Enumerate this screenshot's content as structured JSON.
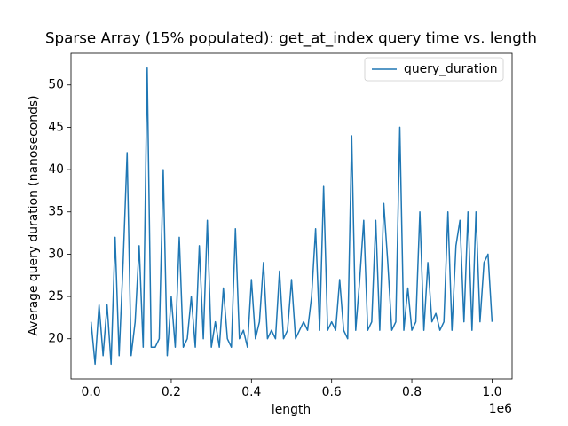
{
  "chart_data": {
    "type": "line",
    "title": "Sparse Array (15% populated): get_at_index query time vs. length",
    "x_label": "length",
    "x_offset_label": "1e6",
    "y_label": "Average query duration (nanoseconds)",
    "x": [
      0,
      10000,
      20000,
      30000,
      40000,
      50000,
      60000,
      70000,
      80000,
      90000,
      100000,
      110000,
      120000,
      130000,
      140000,
      150000,
      160000,
      170000,
      180000,
      190000,
      200000,
      210000,
      220000,
      230000,
      240000,
      250000,
      260000,
      270000,
      280000,
      290000,
      300000,
      310000,
      320000,
      330000,
      340000,
      350000,
      360000,
      370000,
      380000,
      390000,
      400000,
      410000,
      420000,
      430000,
      440000,
      450000,
      460000,
      470000,
      480000,
      490000,
      500000,
      510000,
      520000,
      530000,
      540000,
      550000,
      560000,
      570000,
      580000,
      590000,
      600000,
      610000,
      620000,
      630000,
      640000,
      650000,
      660000,
      670000,
      680000,
      690000,
      700000,
      710000,
      720000,
      730000,
      740000,
      750000,
      760000,
      770000,
      780000,
      790000,
      800000,
      810000,
      820000,
      830000,
      840000,
      850000,
      860000,
      870000,
      880000,
      890000,
      900000,
      910000,
      920000,
      930000,
      940000,
      950000,
      960000,
      970000,
      980000,
      990000,
      1000000
    ],
    "series": [
      {
        "name": "query_duration",
        "color": "#1f77b4",
        "values": [
          22,
          17,
          24,
          18,
          24,
          17,
          32,
          18,
          29,
          42,
          18,
          22,
          31,
          19,
          52,
          19,
          19,
          20,
          40,
          18,
          25,
          19,
          32,
          19,
          20,
          25,
          19,
          31,
          20,
          34,
          19,
          22,
          19,
          26,
          20,
          19,
          33,
          20,
          21,
          19,
          27,
          20,
          22,
          29,
          20,
          21,
          20,
          28,
          20,
          21,
          27,
          20,
          21,
          22,
          21,
          25,
          33,
          21,
          38,
          21,
          22,
          21,
          27,
          21,
          20,
          44,
          21,
          27,
          34,
          21,
          22,
          34,
          21,
          36,
          29,
          21,
          22,
          45,
          21,
          26,
          21,
          22,
          35,
          21,
          29,
          22,
          23,
          21,
          22,
          35,
          21,
          31,
          34,
          22,
          35,
          21,
          35,
          22,
          29,
          30,
          22
        ]
      }
    ],
    "xlim": [
      -50000,
      1050000
    ],
    "ylim": [
      15.25,
      53.75
    ],
    "xticks": [
      {
        "value": 0,
        "label": "0.0"
      },
      {
        "value": 200000,
        "label": "0.2"
      },
      {
        "value": 400000,
        "label": "0.4"
      },
      {
        "value": 600000,
        "label": "0.6"
      },
      {
        "value": 800000,
        "label": "0.8"
      },
      {
        "value": 1000000,
        "label": "1.0"
      }
    ],
    "yticks": [
      20,
      25,
      30,
      35,
      40,
      45,
      50
    ],
    "legend": "upper right"
  }
}
